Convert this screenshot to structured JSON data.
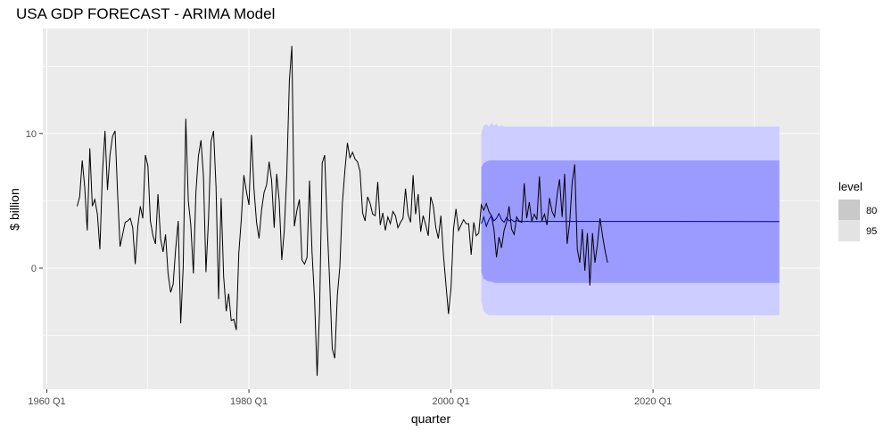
{
  "chart_data": {
    "type": "line",
    "title": "USA GDP FORECAST - ARIMA Model",
    "xlabel": "quarter",
    "ylabel": "$ billion",
    "x_ticks": [
      {
        "label": "1960 Q1",
        "value": 1960
      },
      {
        "label": "1980 Q1",
        "value": 1980
      },
      {
        "label": "2000 Q1",
        "value": 2000
      },
      {
        "label": "2020 Q1",
        "value": 2020
      }
    ],
    "y_ticks": [
      {
        "label": "0",
        "value": 0
      },
      {
        "label": "10",
        "value": 10
      }
    ],
    "xlim": [
      1959.6,
      2036.5
    ],
    "ylim": [
      -9.0,
      17.8
    ],
    "grid": true,
    "panel_background": "#ebebeb",
    "grid_color": "#ffffff",
    "history_color": "#000000",
    "forecast_color": "#00008b",
    "band_80_color": "#9b9bff",
    "band_95_color": "#cdcdff",
    "legend": {
      "title": "level",
      "placement": "right",
      "entries": [
        {
          "label": "80",
          "color": "#c9c9c9"
        },
        {
          "label": "95",
          "color": "#e3e3e3"
        }
      ]
    },
    "history": {
      "start": 1963.0,
      "step": 0.25,
      "values": [
        4.6,
        5.3,
        8.0,
        6.0,
        2.8,
        8.9,
        4.6,
        5.1,
        4.0,
        1.4,
        7.0,
        10.2,
        5.8,
        8.4,
        9.8,
        10.2,
        5.6,
        1.6,
        2.5,
        3.4,
        3.5,
        3.7,
        3.0,
        0.3,
        3.1,
        4.6,
        3.7,
        8.4,
        7.6,
        3.5,
        2.4,
        1.8,
        5.5,
        2.2,
        1.2,
        2.5,
        -0.4,
        -1.8,
        -1.2,
        1.4,
        3.5,
        -4.1,
        0.1,
        11.1,
        5.0,
        3.2,
        -0.4,
        5.6,
        8.3,
        9.5,
        6.8,
        -0.3,
        3.7,
        9.4,
        10.2,
        6.0,
        -2.3,
        5.2,
        -0.6,
        -3.2,
        -1.9,
        -3.9,
        -3.8,
        -4.6,
        1.1,
        3.7,
        6.9,
        5.7,
        4.7,
        9.9,
        5.9,
        3.4,
        2.2,
        4.3,
        5.6,
        6.2,
        7.9,
        6.5,
        3.0,
        7.0,
        5.0,
        0.6,
        2.8,
        7.0,
        13.9,
        16.5,
        3.1,
        4.3,
        5.1,
        0.6,
        0.3,
        0.8,
        6.5,
        1.2,
        -2.4,
        -8.0,
        -3.1,
        7.8,
        8.4,
        3.2,
        -1.2,
        -6.0,
        -6.7,
        -2.0,
        0.1,
        4.8,
        7.3,
        9.3,
        8.2,
        8.6,
        8.1,
        7.9,
        7.2,
        4.1,
        3.5,
        5.3,
        4.8,
        4.0,
        3.9,
        6.4,
        3.2,
        4.1,
        2.8,
        3.8,
        3.3,
        4.2,
        3.9,
        3.0,
        3.4,
        3.7,
        5.9,
        4.0,
        3.4,
        6.9,
        4.0,
        5.5,
        2.7,
        3.9,
        3.2,
        2.4,
        5.3,
        4.6,
        3.0,
        2.2,
        3.9,
        1.0,
        -1.2,
        -3.4,
        -1.5,
        2.9,
        4.4,
        2.8,
        3.2,
        3.6,
        3.3,
        3.3,
        1.0,
        3.4,
        2.4,
        2.6,
        4.7,
        4.3,
        4.8,
        4.2,
        3.9,
        2.9,
        0.8,
        2.3,
        1.5,
        2.8,
        3.4,
        4.6,
        2.9,
        2.5,
        3.8,
        3.5,
        3.4,
        6.3,
        3.7,
        4.9,
        3.5,
        4.0,
        3.6,
        6.8,
        3.5,
        4.0,
        3.2,
        5.2,
        4.2,
        3.8,
        5.4,
        6.6,
        3.8,
        7.0,
        1.8,
        3.4,
        6.4,
        7.7,
        1.4,
        0.4,
        2.9,
        -0.2,
        2.6,
        -1.3,
        2.6,
        0.4,
        1.8,
        3.7,
        2.4,
        1.3,
        0.4
      ]
    },
    "forecast": {
      "start": 2003.0,
      "step": 0.25,
      "values": [
        3.3,
        3.8,
        3.1,
        3.6,
        3.9,
        3.5,
        3.7,
        4.05,
        3.6,
        3.4,
        3.75,
        3.5,
        3.6,
        3.45,
        3.55,
        3.45,
        3.5,
        3.45,
        3.48,
        3.46,
        3.47,
        3.46,
        3.47,
        3.46,
        3.47
      ],
      "tail_value": 3.46,
      "end": 2032.5,
      "lo80": [
        -0.3,
        -0.8,
        -0.9,
        -1.0,
        -1.0,
        -1.1,
        -1.1,
        -1.1,
        -1.1,
        -1.1,
        -1.1,
        -1.1,
        -1.1,
        -1.1,
        -1.1,
        -1.1,
        -1.1,
        -1.1,
        -1.1,
        -1.1,
        -1.1,
        -1.1,
        -1.1,
        -1.1,
        -1.1
      ],
      "hi80": [
        7.5,
        7.8,
        7.9,
        8.0,
        8.0,
        8.0,
        8.0,
        8.0,
        8.0,
        8.0,
        8.0,
        8.0,
        8.0,
        8.0,
        8.0,
        8.0,
        8.0,
        8.0,
        8.0,
        8.0,
        8.0,
        8.0,
        8.0,
        8.0,
        8.0
      ],
      "lo95": [
        -2.5,
        -3.2,
        -3.4,
        -3.5,
        -3.5,
        -3.5,
        -3.5,
        -3.5,
        -3.5,
        -3.5,
        -3.5,
        -3.5,
        -3.5,
        -3.5,
        -3.5,
        -3.5,
        -3.5,
        -3.5,
        -3.5,
        -3.5,
        -3.5,
        -3.5,
        -3.5,
        -3.5,
        -3.5
      ],
      "hi95": [
        10.0,
        10.6,
        10.7,
        10.5,
        10.8,
        10.6,
        10.7,
        10.5,
        10.6,
        10.5,
        10.5,
        10.5,
        10.5,
        10.5,
        10.5,
        10.5,
        10.5,
        10.5,
        10.5,
        10.5,
        10.5,
        10.5,
        10.5,
        10.5,
        10.5
      ],
      "band_tail": {
        "lo80": -1.1,
        "hi80": 8.0,
        "lo95": -3.5,
        "hi95": 10.5
      }
    }
  }
}
